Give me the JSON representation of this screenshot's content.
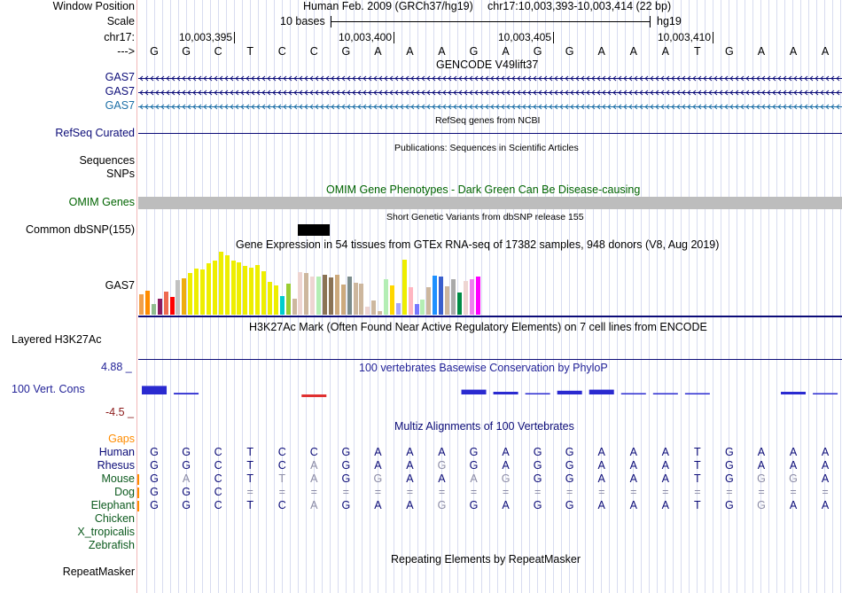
{
  "header": {
    "left_labels": {
      "window_position": "Window Position",
      "scale": "Scale",
      "chrom": "chr17:",
      "strand": "--->"
    },
    "assembly": "Human Feb. 2009 (GRCh37/hg19)",
    "position": "chr17:10,003,393-10,003,414 (22 bp)",
    "scale_text": "10 bases",
    "scale_db": "hg19",
    "ruler": [
      "10,003,395",
      "10,003,400",
      "10,003,405",
      "10,003,410"
    ],
    "sequence": [
      "G",
      "G",
      "C",
      "T",
      "C",
      "C",
      "G",
      "A",
      "A",
      "A",
      "G",
      "A",
      "G",
      "G",
      "A",
      "A",
      "A",
      "T",
      "G",
      "A",
      "A",
      "A"
    ]
  },
  "gencode": {
    "title": "GENCODE V49lift37",
    "tracks": [
      "GAS7",
      "GAS7",
      "GAS7"
    ],
    "colors": [
      "#0c0c78",
      "#0c0c78",
      "#1b6ea6"
    ]
  },
  "refseq": {
    "title": "RefSeq genes from NCBI",
    "label": "RefSeq Curated",
    "color": "#0c0c78"
  },
  "publications": {
    "title": "Publications: Sequences in Scientific Articles",
    "labels": [
      "Sequences",
      "SNPs"
    ]
  },
  "omim": {
    "title": "OMIM Gene Phenotypes - Dark Green Can Be Disease-causing",
    "label": "OMIM Genes",
    "color": "#006400"
  },
  "dbsnp": {
    "title": "Short Genetic Variants from dbSNP release 155",
    "label": "Common dbSNP(155)"
  },
  "gtex": {
    "title": "Gene Expression in 54 tissues from GTEx RNA-seq of 17382 samples, 948 donors (V8, Aug 2019)",
    "label": "GAS7",
    "bars": [
      {
        "v": 0.32,
        "c": "#f0a04b"
      },
      {
        "v": 0.38,
        "c": "#ff8c00"
      },
      {
        "v": 0.17,
        "c": "#8fbc8f"
      },
      {
        "v": 0.26,
        "c": "#8b1c62"
      },
      {
        "v": 0.36,
        "c": "#ee6a50"
      },
      {
        "v": 0.28,
        "c": "#ff0000"
      },
      {
        "v": 0.55,
        "c": "#c1c1c1"
      },
      {
        "v": 0.58,
        "c": "#eead0e"
      },
      {
        "v": 0.66,
        "c": "#eeee00"
      },
      {
        "v": 0.73,
        "c": "#eeee00"
      },
      {
        "v": 0.72,
        "c": "#eeee00"
      },
      {
        "v": 0.81,
        "c": "#eeee00"
      },
      {
        "v": 0.86,
        "c": "#eeee00"
      },
      {
        "v": 1.0,
        "c": "#eeee00"
      },
      {
        "v": 0.94,
        "c": "#eeee00"
      },
      {
        "v": 0.86,
        "c": "#eeee00"
      },
      {
        "v": 0.83,
        "c": "#eeee00"
      },
      {
        "v": 0.78,
        "c": "#eeee00"
      },
      {
        "v": 0.74,
        "c": "#eeee00"
      },
      {
        "v": 0.79,
        "c": "#eeee00"
      },
      {
        "v": 0.69,
        "c": "#eeee00"
      },
      {
        "v": 0.52,
        "c": "#eeee00"
      },
      {
        "v": 0.46,
        "c": "#eeee00"
      },
      {
        "v": 0.29,
        "c": "#00cdcd"
      },
      {
        "v": 0.49,
        "c": "#9acd32"
      },
      {
        "v": 0.26,
        "c": "#cdb79e"
      },
      {
        "v": 0.68,
        "c": "#eed5d2"
      },
      {
        "v": 0.66,
        "c": "#cdb79e"
      },
      {
        "v": 0.61,
        "c": "#eed5d2"
      },
      {
        "v": 0.6,
        "c": "#b4eeb4"
      },
      {
        "v": 0.64,
        "c": "#8b7355"
      },
      {
        "v": 0.59,
        "c": "#8b7355"
      },
      {
        "v": 0.63,
        "c": "#cdaa7d"
      },
      {
        "v": 0.48,
        "c": "#cdaa7d"
      },
      {
        "v": 0.61,
        "c": "#7a8b8b"
      },
      {
        "v": 0.5,
        "c": "#cdb79e"
      },
      {
        "v": 0.49,
        "c": "#cdb79e"
      },
      {
        "v": 0.13,
        "c": "#eed5d2"
      },
      {
        "v": 0.23,
        "c": "#cdb79e"
      },
      {
        "v": 0.05,
        "c": "#cdb79e"
      },
      {
        "v": 0.56,
        "c": "#b4eeb4"
      },
      {
        "v": 0.47,
        "c": "#ffd700"
      },
      {
        "v": 0.19,
        "c": "#a6a6ff"
      },
      {
        "v": 0.87,
        "c": "#eeee00"
      },
      {
        "v": 0.43,
        "c": "#ffb6c1"
      },
      {
        "v": 0.17,
        "c": "#7777ff"
      },
      {
        "v": 0.24,
        "c": "#b4eeb4"
      },
      {
        "v": 0.44,
        "c": "#cdb79e"
      },
      {
        "v": 0.62,
        "c": "#1e90ff"
      },
      {
        "v": 0.6,
        "c": "#3a5fcd"
      },
      {
        "v": 0.45,
        "c": "#cdb79e"
      },
      {
        "v": 0.56,
        "c": "#a9a9a9"
      },
      {
        "v": 0.35,
        "c": "#008b45"
      },
      {
        "v": 0.54,
        "c": "#eed5d2"
      },
      {
        "v": 0.57,
        "c": "#ee82ee"
      },
      {
        "v": 0.61,
        "c": "#ff00ff"
      }
    ]
  },
  "h3k27ac": {
    "title": "H3K27Ac Mark (Often Found Near Active Regulatory Elements) on 7 cell lines from ENCODE",
    "label": "Layered H3K27Ac"
  },
  "conservation": {
    "title": "100 vertebrates Basewise Conservation by PhyloP",
    "label": "100 Vert. Cons",
    "ymax_label": "4.88 _",
    "ymin_label": "-4.5 _",
    "ymax": 4.88,
    "ymin": -4.5,
    "scores": [
      1.6,
      0.3,
      0.0,
      0.0,
      0.0,
      -0.5,
      0.0,
      0.0,
      0.0,
      0.0,
      0.9,
      0.5,
      0.25,
      0.7,
      0.9,
      0.1,
      0.1,
      0.05,
      0.0,
      0.0,
      0.5,
      0.2
    ]
  },
  "multiz": {
    "title": "Multiz Alignments of 100 Vertebrates",
    "gaps_label": "Gaps",
    "gaps_color": "#ff8c00",
    "species": [
      {
        "name": "Human",
        "bases": [
          "G",
          "G",
          "C",
          "T",
          "C",
          "C",
          "G",
          "A",
          "A",
          "A",
          "G",
          "A",
          "G",
          "G",
          "A",
          "A",
          "A",
          "T",
          "G",
          "A",
          "A",
          "A"
        ],
        "dim": []
      },
      {
        "name": "Rhesus",
        "bases": [
          "G",
          "G",
          "C",
          "T",
          "C",
          "A",
          "G",
          "A",
          "A",
          "G",
          "G",
          "A",
          "G",
          "G",
          "A",
          "A",
          "A",
          "T",
          "G",
          "A",
          "A",
          "A"
        ],
        "dim": [
          5,
          9
        ]
      },
      {
        "name": "Mouse",
        "bases": [
          "G",
          "A",
          "C",
          "T",
          "T",
          "A",
          "G",
          "G",
          "A",
          "A",
          "A",
          "G",
          "G",
          "G",
          "A",
          "A",
          "A",
          "T",
          "G",
          "G",
          "G",
          "A"
        ],
        "dim": [
          1,
          4,
          5,
          7,
          10,
          11,
          19,
          20
        ]
      },
      {
        "name": "Dog",
        "bases": [
          "G",
          "G",
          "C",
          "=",
          "=",
          "=",
          "=",
          "=",
          "=",
          "=",
          "=",
          "=",
          "=",
          "=",
          "=",
          "=",
          "=",
          "=",
          "=",
          "=",
          "=",
          "="
        ],
        "dim": []
      },
      {
        "name": "Elephant",
        "bases": [
          "G",
          "G",
          "C",
          "T",
          "C",
          "A",
          "G",
          "A",
          "A",
          "G",
          "G",
          "A",
          "G",
          "G",
          "A",
          "A",
          "A",
          "T",
          "G",
          "G",
          "A",
          "A"
        ],
        "dim": [
          5,
          9,
          19
        ]
      },
      {
        "name": "Chicken",
        "bases": [],
        "dim": []
      },
      {
        "name": "X_tropicalis",
        "bases": [],
        "dim": []
      },
      {
        "name": "Zebrafish",
        "bases": [],
        "dim": []
      }
    ]
  },
  "repeatmasker": {
    "title": "Repeating Elements by RepeatMasker",
    "label": "RepeatMasker"
  }
}
